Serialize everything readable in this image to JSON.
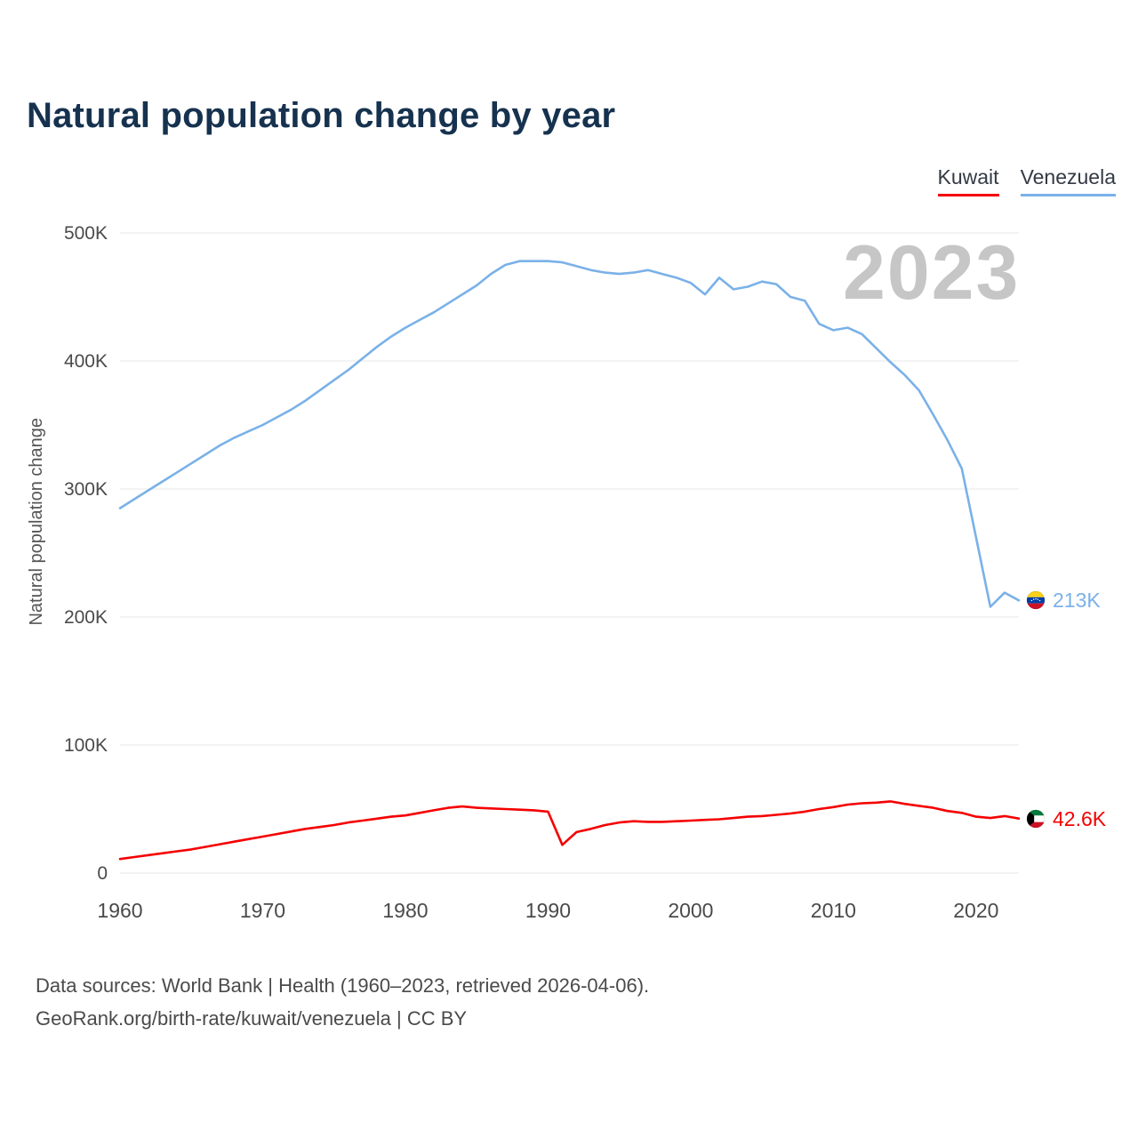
{
  "title": "Natural population change by year",
  "legend": {
    "kuwait": "Kuwait",
    "venezuela": "Venezuela"
  },
  "watermark": "2023",
  "ylabel": "Natural population change",
  "footer": {
    "line1": "Data sources: World Bank | Health (1960–2023, retrieved 2026-04-06).",
    "line2": "GeoRank.org/birth-rate/kuwait/venezuela | CC BY"
  },
  "colors": {
    "kuwait": "#f50000",
    "venezuela": "#7ab1e8",
    "title": "#16324f",
    "grid": "#e7e7e7",
    "axis_text": "#4a4a4a",
    "watermark": "#c6c6c6"
  },
  "chart_data": {
    "type": "line",
    "title": "Natural population change by year",
    "xlabel": "",
    "ylabel": "Natural population change",
    "values_unit": "persons (thousands)",
    "grid": true,
    "legend_position": "top-right",
    "ylim_k": [
      0,
      500
    ],
    "yticks": [
      "0",
      "100K",
      "200K",
      "300K",
      "400K",
      "500K"
    ],
    "ytick_values": [
      0,
      100,
      200,
      300,
      400,
      500
    ],
    "xticks": [
      1960,
      1970,
      1980,
      1990,
      2000,
      2010,
      2020
    ],
    "x": [
      1960,
      1961,
      1962,
      1963,
      1964,
      1965,
      1966,
      1967,
      1968,
      1969,
      1970,
      1971,
      1972,
      1973,
      1974,
      1975,
      1976,
      1977,
      1978,
      1979,
      1980,
      1981,
      1982,
      1983,
      1984,
      1985,
      1986,
      1987,
      1988,
      1989,
      1990,
      1991,
      1992,
      1993,
      1994,
      1995,
      1996,
      1997,
      1998,
      1999,
      2000,
      2001,
      2002,
      2003,
      2004,
      2005,
      2006,
      2007,
      2008,
      2009,
      2010,
      2011,
      2012,
      2013,
      2014,
      2015,
      2016,
      2017,
      2018,
      2019,
      2020,
      2021,
      2022,
      2023
    ],
    "series": [
      {
        "name": "Kuwait",
        "color": "#f50000",
        "end_label": "42.6K",
        "values": [
          11,
          12.5,
          14,
          15.5,
          17,
          18.5,
          20.5,
          22.5,
          24.5,
          26.5,
          28.5,
          30.5,
          32.5,
          34.5,
          36,
          37.5,
          39.5,
          41,
          42.5,
          44,
          45,
          47,
          49,
          51,
          52,
          51,
          50.5,
          50,
          49.5,
          49,
          48,
          22,
          32,
          34.5,
          37.5,
          39.5,
          40.5,
          40,
          40,
          40.5,
          41,
          41.5,
          42,
          43,
          44,
          44.5,
          45.5,
          46.5,
          48,
          50,
          51.5,
          53.5,
          54.5,
          55,
          56,
          54,
          52.5,
          51,
          48.5,
          47,
          44,
          43,
          44.5,
          42.6
        ]
      },
      {
        "name": "Venezuela",
        "color": "#7ab1e8",
        "end_label": "213K",
        "values": [
          285,
          292,
          299,
          306,
          313,
          320,
          327,
          334,
          340,
          345,
          350,
          356,
          362,
          369,
          377,
          385,
          393,
          402,
          411,
          419,
          426,
          432,
          438,
          445,
          452,
          459,
          468,
          475,
          478,
          478,
          478,
          477,
          474,
          471,
          469,
          468,
          469,
          471,
          468,
          465,
          461,
          452,
          465,
          456,
          458,
          462,
          460,
          450,
          447,
          429,
          424,
          426,
          421,
          410,
          399,
          389,
          377,
          358,
          338,
          316,
          262,
          208,
          219,
          213
        ]
      }
    ]
  }
}
